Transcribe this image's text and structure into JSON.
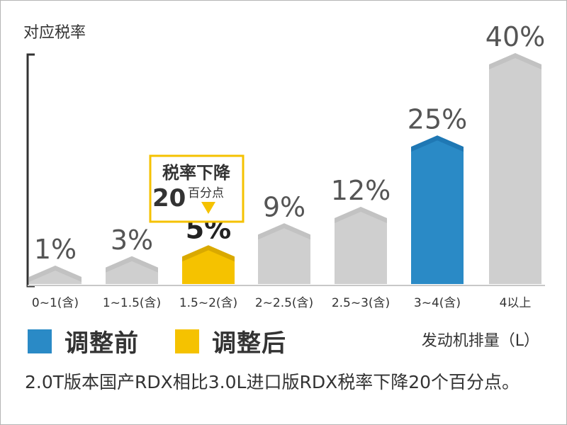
{
  "chart_data": {
    "type": "bar",
    "ylabel": "对应税率",
    "xlabel": "发动机排量（L）",
    "ylim": [
      0,
      40
    ],
    "categories": [
      "0~1(含)",
      "1~1.5(含)",
      "1.5~2(含)",
      "2~2.5(含)",
      "2.5~3(含)",
      "3~4(含)",
      "4以上"
    ],
    "values": [
      1,
      3,
      5,
      9,
      12,
      25,
      40
    ],
    "value_labels": [
      "1%",
      "3%",
      "5%",
      "9%",
      "12%",
      "25%",
      "40%"
    ],
    "bar_colors": [
      "#cfcfcf",
      "#cfcfcf",
      "#f5c200",
      "#cfcfcf",
      "#cfcfcf",
      "#2a8ac6",
      "#cfcfcf"
    ],
    "bar_cap_colors": [
      "#c2c2c2",
      "#c2c2c2",
      "#d9a900",
      "#c2c2c2",
      "#c2c2c2",
      "#1f78b4",
      "#c2c2c2"
    ],
    "grid": false,
    "annotation": {
      "target_index": 2,
      "line1": "税率下降",
      "line2_number": "20",
      "line2_unit": "百分点"
    }
  },
  "legend": [
    {
      "label": "调整前",
      "color": "#2a8ac6"
    },
    {
      "label": "调整后",
      "color": "#f5c200"
    }
  ],
  "caption": "2.0T版本国产RDX相比3.0L进口版RDX税率下降20个百分点。"
}
